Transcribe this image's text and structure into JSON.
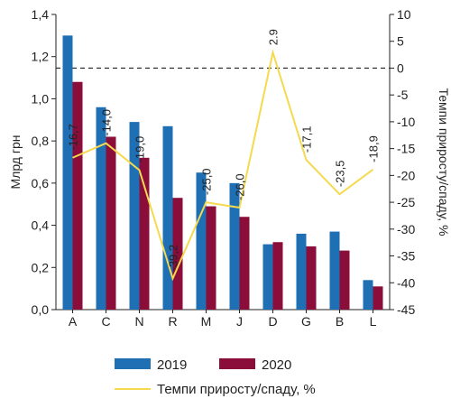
{
  "chart_data": {
    "type": "bar",
    "categories": [
      "A",
      "C",
      "N",
      "R",
      "M",
      "J",
      "D",
      "G",
      "B",
      "L"
    ],
    "series": [
      {
        "name": "2019",
        "values": [
          1.3,
          0.96,
          0.89,
          0.87,
          0.65,
          0.6,
          0.31,
          0.36,
          0.37,
          0.14
        ]
      },
      {
        "name": "2020",
        "values": [
          1.08,
          0.82,
          0.72,
          0.53,
          0.49,
          0.44,
          0.32,
          0.3,
          0.28,
          0.11
        ]
      }
    ],
    "line_series": {
      "name": "Темпи приросту/спаду, %",
      "values": [
        -16.7,
        -14.0,
        -19.0,
        -39.2,
        -25.0,
        -26.0,
        2.9,
        -17.1,
        -23.5,
        -18.9
      ],
      "labels": [
        "-16,7",
        "-14,0",
        "-19,0",
        "-39,2",
        "-25,0",
        "-26,0",
        "2.9",
        "-17,1",
        "-23,5",
        "-18,9"
      ]
    },
    "ylabel": "Млрд грн",
    "y2label": "Темпи приросту/спаду, %",
    "ylim": [
      0,
      1.4
    ],
    "y2lim": [
      -45,
      10
    ],
    "yticks": [
      "0,0",
      "0,2",
      "0,4",
      "0,6",
      "0,8",
      "1,0",
      "1,2",
      "1,4"
    ],
    "y2ticks": [
      "-45",
      "-40",
      "-35",
      "-30",
      "-25",
      "-20",
      "-15",
      "-10",
      "-5",
      "0",
      "5",
      "10"
    ],
    "colors": {
      "2019": "#1f6fb5",
      "2020": "#8b0d3a",
      "line": "#f5d94e"
    },
    "reference_line": {
      "y2_value": 0,
      "style": "dashed"
    },
    "legend_position": "bottom"
  }
}
